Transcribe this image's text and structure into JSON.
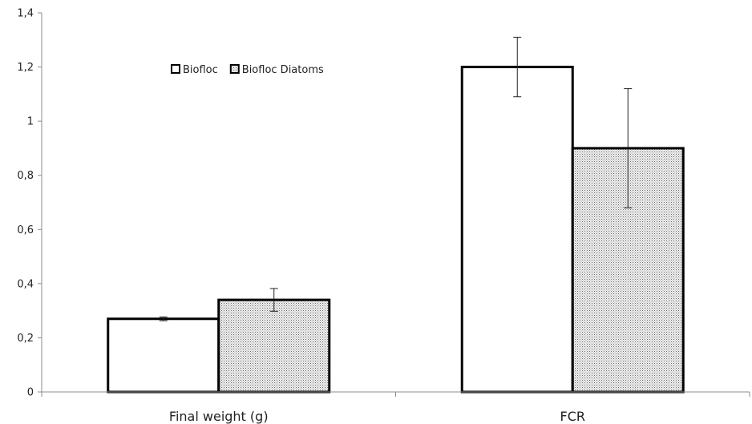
{
  "chart_data": {
    "type": "bar",
    "title": "",
    "xlabel": "",
    "ylabel": "",
    "categories": [
      "Final weight (g)",
      "FCR"
    ],
    "ylim": [
      0,
      1.4
    ],
    "yticks": [
      0,
      0.2,
      0.4,
      0.6,
      0.8,
      1,
      1.2,
      1.4
    ],
    "ytick_labels": [
      "0",
      "0,2",
      "0,4",
      "0,6",
      "0,8",
      "1",
      "1,2",
      "1,4"
    ],
    "grid": false,
    "legend": {
      "position": "top-left"
    },
    "series": [
      {
        "name": "Biofloc",
        "fill": "#ffffff",
        "pattern": "none",
        "values": [
          0.27,
          1.2
        ],
        "errors": [
          0.007,
          0.11
        ]
      },
      {
        "name": "Biofloc Diatoms",
        "fill": "#d9d9d9",
        "pattern": "dots",
        "values": [
          0.34,
          0.9
        ],
        "errors": [
          0.042,
          0.22
        ]
      }
    ]
  }
}
